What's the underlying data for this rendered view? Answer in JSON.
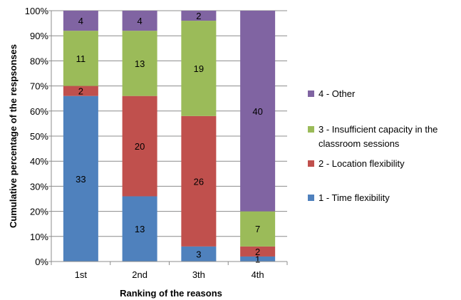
{
  "chart_data": {
    "type": "bar",
    "stacked": true,
    "normalized": true,
    "categories": [
      "1st",
      "2nd",
      "3th",
      "4th"
    ],
    "series": [
      {
        "name": "1 - Time flexibility",
        "values": [
          33,
          13,
          3,
          1
        ],
        "color": "#4f81bd"
      },
      {
        "name": "2 - Location flexibility",
        "values": [
          2,
          20,
          26,
          2
        ],
        "color": "#c0504d"
      },
      {
        "name": "3 - Insufficient capacity in the classroom sessions",
        "values": [
          11,
          13,
          19,
          7
        ],
        "color": "#9bbb59"
      },
      {
        "name": "4 - Other",
        "values": [
          4,
          4,
          2,
          40
        ],
        "color": "#8064a2"
      }
    ],
    "xlabel": "Ranking of the reasons",
    "ylabel": "Cumulative percentage of the respsonses",
    "ylim": [
      0,
      100
    ],
    "yticks": [
      "0%",
      "10%",
      "20%",
      "30%",
      "40%",
      "50%",
      "60%",
      "70%",
      "80%",
      "90%",
      "100%"
    ],
    "grid": true,
    "legend_position": "right",
    "legend_order": [
      "4 - Other",
      "3 - Insufficient capacity in the classroom sessions",
      "2 - Location flexibility",
      "1 - Time flexibility"
    ]
  }
}
